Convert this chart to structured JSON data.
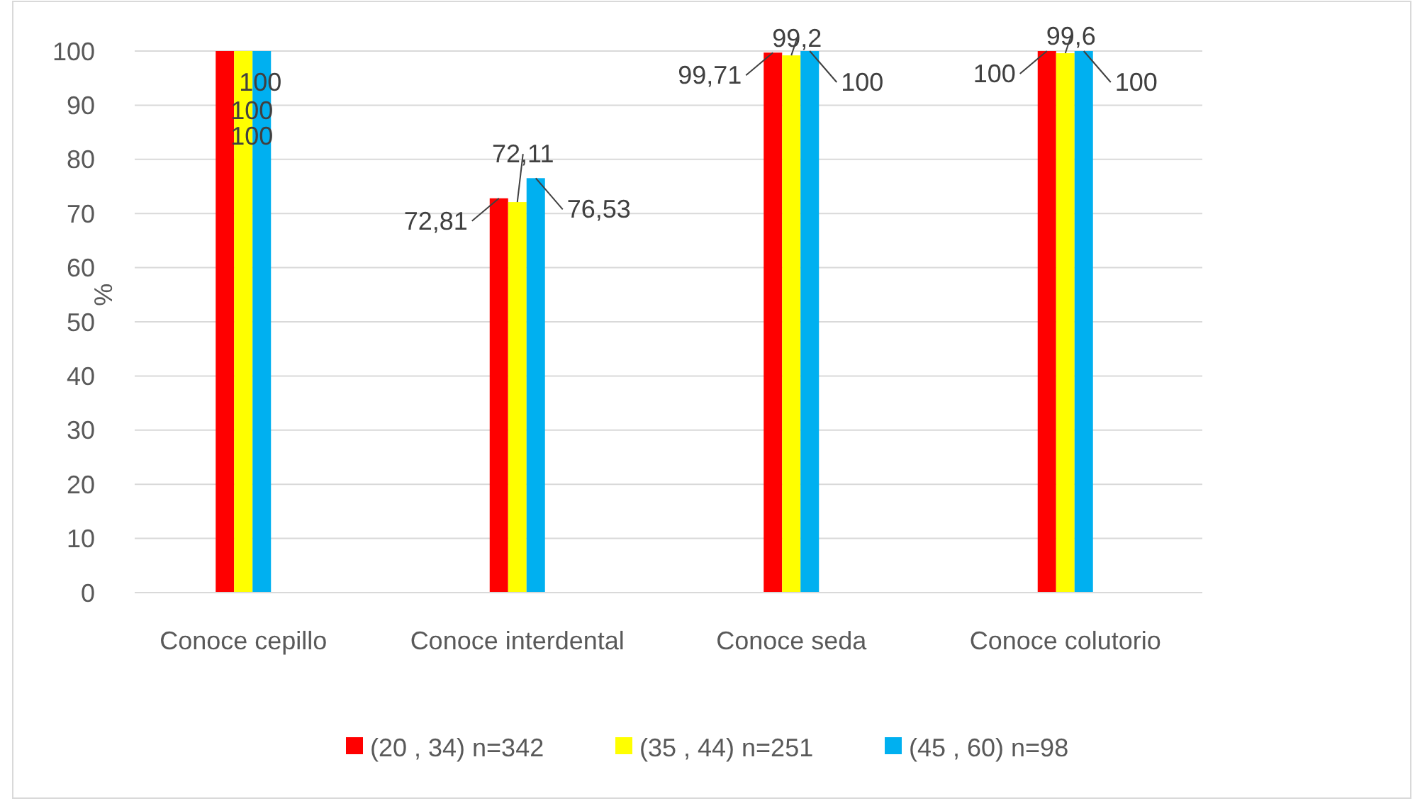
{
  "chart_data": {
    "type": "bar",
    "ylabel": "%",
    "categories": [
      "Conoce cepillo",
      "Conoce interdental",
      "Conoce seda",
      "Conoce colutorio"
    ],
    "series": [
      {
        "name": "(20 , 34) n=342",
        "color": "#ff0000",
        "values": [
          100,
          72.81,
          99.71,
          100
        ],
        "value_labels": [
          "100",
          "72,81",
          "99,71",
          "100"
        ]
      },
      {
        "name": "(35 , 44) n=251",
        "color": "#ffff00",
        "values": [
          100,
          72.11,
          99.2,
          99.6
        ],
        "value_labels": [
          "100",
          "72,11",
          "99,2",
          "99,6"
        ]
      },
      {
        "name": "(45 , 60) n=98",
        "color": "#00b0f0",
        "values": [
          100,
          76.53,
          100,
          100
        ],
        "value_labels": [
          "100",
          "76,53",
          "100",
          "100"
        ]
      }
    ],
    "ylim": [
      0,
      100
    ],
    "yticks": [
      0,
      10,
      20,
      30,
      40,
      50,
      60,
      70,
      80,
      90,
      100
    ],
    "grid": "y",
    "legend": "bottom"
  }
}
